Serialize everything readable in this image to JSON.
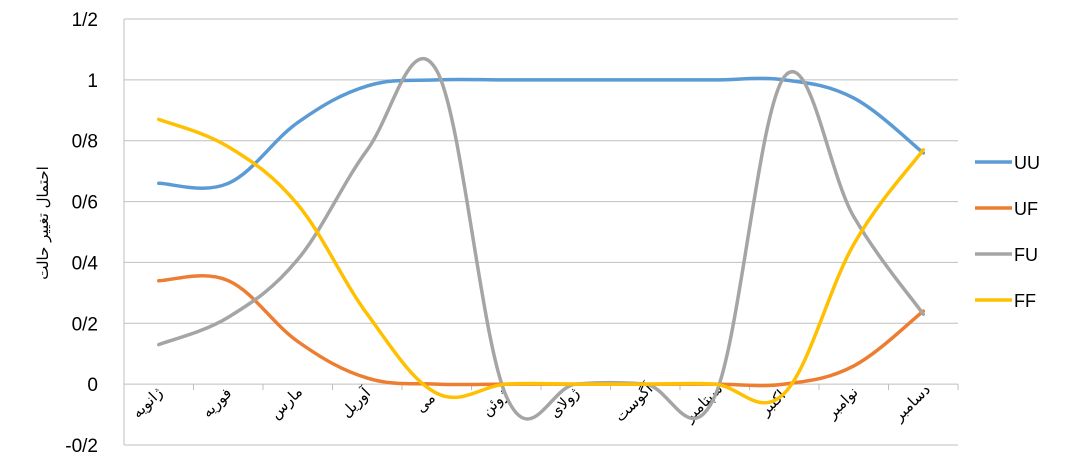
{
  "chart_data": {
    "type": "line",
    "title": "",
    "xlabel": "",
    "ylabel": "احتمال تغییر حالت",
    "categories": [
      "ژانویه",
      "فوریه",
      "مارس",
      "آوریل",
      "می",
      "ژوئن",
      "ژولای",
      "آگوست",
      "سپتامبر",
      "اکتبر",
      "نوامبر",
      "دسامبر"
    ],
    "ylim": [
      -0.2,
      1.2
    ],
    "yticks": [
      -0.2,
      0,
      0.2,
      0.4,
      0.6,
      0.8,
      1,
      1.2
    ],
    "ytick_labels": [
      "-0/2",
      "0",
      "0/2",
      "0/4",
      "0/6",
      "0/8",
      "1",
      "1/2"
    ],
    "smooth": true,
    "grid": "horizontal",
    "legend_position": "right",
    "series": [
      {
        "name": "UU",
        "color": "#5B9BD5",
        "values": [
          0.66,
          0.66,
          0.86,
          0.98,
          1.0,
          1.0,
          1.0,
          1.0,
          1.0,
          1.0,
          0.94,
          0.76
        ]
      },
      {
        "name": "UF",
        "color": "#ED7D31",
        "values": [
          0.34,
          0.34,
          0.14,
          0.02,
          0.0,
          0.0,
          0.0,
          0.0,
          0.0,
          0.0,
          0.06,
          0.24
        ]
      },
      {
        "name": "FU",
        "color": "#A5A5A5",
        "values": [
          0.13,
          0.22,
          0.41,
          0.77,
          1.03,
          -0.04,
          0.0,
          0.0,
          -0.04,
          1.01,
          0.55,
          0.23
        ]
      },
      {
        "name": "FF",
        "color": "#FFC000",
        "values": [
          0.87,
          0.78,
          0.59,
          0.23,
          -0.03,
          0.0,
          0.0,
          0.0,
          0.0,
          -0.03,
          0.46,
          0.77
        ]
      }
    ]
  }
}
